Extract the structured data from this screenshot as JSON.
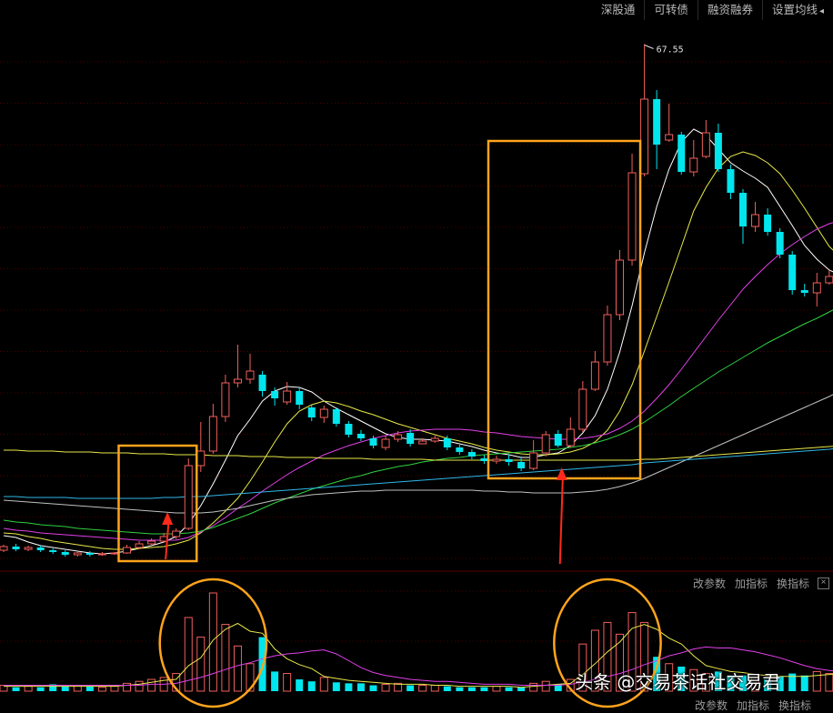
{
  "toolbar": {
    "tabs": [
      "深股通",
      "可转债",
      "融资融券",
      "设置均线"
    ],
    "dropdown_glyph": "◂"
  },
  "indicator_bar_top": {
    "buttons": [
      "改参数",
      "加指标",
      "换指标"
    ],
    "close": "×"
  },
  "indicator_bar_bottom": {
    "buttons": [
      "改参数",
      "加指标",
      "换指标"
    ]
  },
  "watermark": "头条 @交易茶话社交易君",
  "colors": {
    "up": "#f0605c",
    "down": "#00e5ee",
    "grid": "#4a0000",
    "highlight_box": "#ffa41c",
    "arrow": "#ff2a1a",
    "ma_white": "#ffffff",
    "ma_yellow": "#e8e84a",
    "ma_magenta": "#e040e8",
    "ma_green": "#30d040",
    "ma_gray": "#c0c0c0",
    "ma_cyan": "#30b8e8"
  },
  "chart_data": [
    {
      "type": "candlestick",
      "title": "",
      "price_range": [
        10,
        70
      ],
      "max_label": "67.55",
      "candles": [
        [
          11.9,
          12.3,
          12.5,
          11.7
        ],
        [
          12.3,
          12.0,
          12.6,
          11.8
        ],
        [
          12.0,
          12.2,
          12.4,
          11.8
        ],
        [
          12.2,
          11.9,
          12.4,
          11.7
        ],
        [
          11.9,
          11.7,
          12.1,
          11.5
        ],
        [
          11.7,
          11.4,
          11.9,
          11.2
        ],
        [
          11.4,
          11.6,
          11.8,
          11.2
        ],
        [
          11.6,
          11.4,
          11.8,
          11.2
        ],
        [
          11.4,
          11.5,
          11.7,
          11.3
        ],
        [
          11.5,
          11.6,
          11.7,
          11.4
        ],
        [
          11.6,
          12.2,
          12.5,
          11.5
        ],
        [
          12.2,
          12.6,
          12.9,
          12.0
        ],
        [
          12.6,
          12.9,
          13.2,
          12.4
        ],
        [
          12.9,
          13.4,
          13.8,
          12.7
        ],
        [
          13.4,
          14.0,
          14.3,
          13.1
        ],
        [
          14.3,
          21.2,
          22.0,
          14.1
        ],
        [
          21.2,
          22.8,
          26.0,
          20.5
        ],
        [
          22.8,
          26.6,
          28.0,
          22.5
        ],
        [
          26.6,
          30.3,
          31.2,
          26.0
        ],
        [
          30.3,
          30.7,
          34.5,
          29.8
        ],
        [
          30.7,
          31.6,
          33.5,
          30.2
        ],
        [
          31.2,
          29.4,
          31.6,
          28.8
        ],
        [
          29.4,
          28.6,
          29.8,
          27.8
        ],
        [
          28.2,
          29.4,
          30.4,
          27.9
        ],
        [
          29.4,
          27.9,
          29.8,
          27.4
        ],
        [
          27.6,
          26.5,
          27.9,
          26.1
        ],
        [
          26.5,
          27.4,
          27.8,
          25.9
        ],
        [
          27.4,
          25.8,
          27.6,
          25.5
        ],
        [
          25.8,
          24.6,
          26.1,
          24.3
        ],
        [
          24.7,
          24.2,
          25.1,
          23.9
        ],
        [
          24.2,
          23.4,
          24.5,
          23.1
        ],
        [
          23.2,
          24.1,
          24.5,
          22.9
        ],
        [
          24.1,
          24.6,
          25.0,
          23.8
        ],
        [
          24.8,
          23.6,
          25.2,
          23.3
        ],
        [
          23.6,
          23.9,
          24.2,
          23.6
        ],
        [
          23.9,
          24.2,
          24.5,
          23.7
        ],
        [
          24.2,
          23.2,
          24.5,
          22.9
        ],
        [
          23.2,
          22.7,
          23.5,
          22.4
        ],
        [
          22.7,
          22.2,
          23.0,
          21.9
        ],
        [
          22.0,
          21.7,
          22.4,
          21.4
        ],
        [
          21.7,
          21.9,
          22.3,
          21.4
        ],
        [
          21.9,
          21.6,
          22.4,
          21.2
        ],
        [
          21.6,
          20.9,
          22.2,
          20.6
        ],
        [
          20.9,
          22.6,
          24.0,
          20.7
        ],
        [
          22.6,
          24.6,
          25.0,
          22.2
        ],
        [
          24.7,
          23.4,
          25.1,
          23.2
        ],
        [
          23.4,
          25.2,
          26.5,
          23.2
        ],
        [
          25.2,
          29.6,
          30.5,
          24.9
        ],
        [
          29.6,
          32.6,
          33.8,
          29.4
        ],
        [
          32.6,
          37.8,
          38.8,
          32.2
        ],
        [
          37.8,
          43.8,
          44.9,
          37.2
        ],
        [
          43.8,
          53.4,
          55.5,
          43.2
        ],
        [
          53.3,
          61.5,
          67.55,
          53.0
        ],
        [
          61.5,
          56.5,
          62.5,
          53.8
        ],
        [
          57.0,
          57.6,
          61.0,
          56.8
        ],
        [
          57.6,
          53.5,
          57.9,
          53.2
        ],
        [
          53.5,
          55.0,
          57.0,
          53.0
        ],
        [
          55.2,
          57.8,
          59.2,
          55.0
        ],
        [
          57.8,
          53.8,
          58.8,
          53.5
        ],
        [
          53.8,
          51.2,
          54.3,
          50.5
        ],
        [
          51.2,
          47.5,
          51.6,
          45.6
        ],
        [
          47.5,
          48.8,
          50.2,
          46.9
        ],
        [
          48.8,
          46.9,
          49.5,
          46.5
        ],
        [
          46.9,
          44.4,
          47.3,
          44.0
        ],
        [
          44.4,
          40.5,
          44.8,
          40.0
        ],
        [
          40.5,
          40.2,
          41.2,
          39.8
        ],
        [
          40.2,
          41.3,
          42.4,
          38.7
        ],
        [
          41.3,
          42.0,
          42.7,
          41.1
        ],
        [
          42.0,
          41.5,
          42.3,
          41.0
        ]
      ],
      "ma_series": [
        {
          "color_key": "ma_white",
          "values": [
            13.5,
            13.3,
            12.8,
            12.4,
            12.2,
            12.0,
            11.8,
            11.6,
            11.5,
            11.6,
            11.8,
            12.1,
            12.4,
            12.8,
            13.4,
            14.8,
            16.8,
            19.2,
            21.8,
            24.5,
            26.3,
            28.3,
            29.4,
            29.9,
            29.8,
            29.3,
            28.3,
            27.5,
            26.8,
            26.1,
            25.4,
            24.7,
            24.3,
            24.1,
            24.1,
            24.0,
            23.9,
            23.6,
            23.3,
            22.9,
            22.6,
            22.4,
            22.1,
            22.1,
            22.4,
            22.6,
            23.4,
            24.8,
            26.7,
            29.6,
            33.7,
            38.8,
            44.6,
            49.7,
            53.8,
            56.8,
            58.2,
            57.5,
            56.0,
            54.5,
            53.6,
            52.8,
            51.8,
            49.7,
            47.6,
            45.4,
            43.9,
            42.7,
            42.1
          ]
        },
        {
          "color_key": "ma_yellow",
          "values": [
            13.8,
            13.7,
            13.4,
            13.2,
            12.9,
            12.7,
            12.5,
            12.3,
            12.1,
            12.0,
            12.0,
            12.1,
            12.2,
            12.3,
            12.6,
            13.0,
            13.8,
            14.9,
            16.2,
            17.6,
            19.5,
            21.6,
            23.8,
            25.8,
            27.2,
            27.9,
            28.3,
            28.1,
            27.7,
            27.2,
            26.8,
            26.3,
            25.8,
            25.4,
            25.0,
            24.6,
            24.2,
            23.9,
            23.6,
            23.2,
            22.9,
            22.7,
            22.5,
            22.4,
            22.4,
            22.5,
            22.7,
            23.1,
            23.8,
            25.1,
            27.2,
            30.1,
            33.8,
            37.6,
            41.4,
            45.3,
            49.2,
            51.8,
            53.9,
            55.2,
            55.7,
            55.3,
            54.5,
            53.3,
            51.5,
            49.5,
            47.4,
            45.3,
            44.0
          ]
        },
        {
          "color_key": "ma_magenta",
          "values": [
            14.3,
            14.1,
            14.0,
            13.8,
            13.7,
            13.6,
            13.5,
            13.4,
            13.3,
            13.2,
            13.1,
            13.0,
            13.0,
            13.0,
            13.0,
            13.3,
            13.9,
            14.6,
            15.5,
            16.5,
            17.4,
            18.4,
            19.3,
            20.2,
            21.0,
            21.7,
            22.4,
            22.9,
            23.4,
            23.8,
            24.2,
            24.5,
            24.8,
            25.0,
            25.1,
            25.2,
            25.2,
            25.2,
            25.1,
            24.9,
            24.8,
            24.6,
            24.4,
            24.3,
            24.2,
            24.1,
            24.1,
            24.2,
            24.4,
            24.7,
            25.3,
            26.1,
            27.2,
            28.6,
            30.1,
            31.8,
            33.6,
            35.4,
            37.2,
            38.9,
            40.6,
            42.0,
            43.3,
            44.5,
            45.5,
            46.4,
            47.2,
            47.8,
            48.2
          ]
        },
        {
          "color_key": "ma_green",
          "values": [
            15.2,
            15.0,
            14.9,
            14.7,
            14.6,
            14.5,
            14.3,
            14.2,
            14.1,
            14.0,
            13.9,
            13.8,
            13.7,
            13.7,
            13.7,
            13.8,
            14.0,
            14.4,
            14.9,
            15.4,
            15.9,
            16.5,
            17.1,
            17.6,
            18.1,
            18.6,
            19.0,
            19.4,
            19.8,
            20.1,
            20.5,
            20.8,
            21.1,
            21.3,
            21.6,
            21.8,
            22.0,
            22.1,
            22.3,
            22.4,
            22.5,
            22.6,
            22.7,
            22.8,
            22.9,
            23.0,
            23.2,
            23.4,
            23.7,
            24.1,
            24.6,
            25.2,
            26.0,
            26.9,
            27.8,
            28.8,
            29.7,
            30.6,
            31.5,
            32.3,
            33.1,
            33.9,
            34.7,
            35.4,
            36.1,
            36.8,
            37.4,
            38.1,
            38.8
          ]
        },
        {
          "color_key": "ma_gray",
          "values": [
            17.4,
            17.3,
            17.2,
            17.1,
            17.0,
            16.9,
            16.8,
            16.7,
            16.6,
            16.5,
            16.4,
            16.3,
            16.2,
            16.1,
            16.0,
            16.0,
            16.0,
            16.1,
            16.3,
            16.5,
            16.8,
            17.1,
            17.4,
            17.6,
            17.8,
            18.0,
            18.1,
            18.2,
            18.3,
            18.4,
            18.4,
            18.5,
            18.5,
            18.5,
            18.5,
            18.5,
            18.5,
            18.5,
            18.5,
            18.4,
            18.4,
            18.3,
            18.3,
            18.2,
            18.2,
            18.2,
            18.2,
            18.3,
            18.4,
            18.6,
            18.9,
            19.3,
            19.8,
            20.4,
            21.0,
            21.6,
            22.2,
            22.8,
            23.4,
            24.0,
            24.6,
            25.2,
            25.8,
            26.4,
            27.0,
            27.6,
            28.2,
            28.8,
            29.5
          ]
        },
        {
          "color_key": "ma_yellow",
          "values": [
            22.9,
            22.9,
            22.8,
            22.8,
            22.8,
            22.7,
            22.7,
            22.7,
            22.6,
            22.6,
            22.6,
            22.5,
            22.5,
            22.5,
            22.4,
            22.4,
            22.4,
            22.3,
            22.3,
            22.3,
            22.2,
            22.2,
            22.2,
            22.1,
            22.1,
            22.1,
            22.0,
            22.0,
            22.0,
            22.0,
            21.9,
            21.9,
            21.9,
            21.9,
            21.9,
            21.8,
            21.8,
            21.8,
            21.8,
            21.8,
            21.8,
            21.8,
            21.8,
            21.8,
            21.8,
            21.8,
            21.8,
            21.8,
            21.8,
            21.8,
            21.8,
            21.8,
            21.9,
            21.9,
            22.0,
            22.1,
            22.2,
            22.3,
            22.4,
            22.5,
            22.6,
            22.7,
            22.8,
            22.9,
            23.0,
            23.1,
            23.2,
            23.3,
            23.4
          ]
        },
        {
          "color_key": "ma_cyan",
          "values": [
            17.8,
            17.8,
            17.7,
            17.7,
            17.7,
            17.7,
            17.6,
            17.6,
            17.6,
            17.6,
            17.6,
            17.6,
            17.6,
            17.7,
            17.7,
            17.8,
            17.8,
            17.9,
            18.0,
            18.1,
            18.2,
            18.3,
            18.4,
            18.5,
            18.6,
            18.7,
            18.8,
            18.9,
            19.0,
            19.1,
            19.2,
            19.3,
            19.4,
            19.5,
            19.6,
            19.7,
            19.8,
            19.9,
            20.0,
            20.1,
            20.2,
            20.3,
            20.4,
            20.5,
            20.6,
            20.7,
            20.8,
            20.9,
            21.0,
            21.1,
            21.2,
            21.3,
            21.5,
            21.6,
            21.7,
            21.8,
            21.9,
            22.0,
            22.1,
            22.2,
            22.3,
            22.4,
            22.5,
            22.6,
            22.7,
            22.8,
            22.9,
            23.0,
            23.2
          ]
        }
      ],
      "highlight_boxes": [
        [
          10,
          15
        ],
        [
          40,
          51
        ]
      ],
      "arrows": [
        13,
        45
      ]
    },
    {
      "type": "bar",
      "title": "",
      "volume_range": [
        0,
        100
      ],
      "volumes": [
        6,
        4,
        5,
        4,
        7,
        5,
        6,
        5,
        4,
        5,
        8,
        10,
        12,
        14,
        18,
        75,
        55,
        100,
        68,
        46,
        28,
        55,
        20,
        18,
        12,
        10,
        14,
        9,
        8,
        8,
        6,
        7,
        8,
        6,
        6,
        6,
        5,
        4,
        4,
        4,
        5,
        4,
        4,
        8,
        10,
        7,
        12,
        48,
        62,
        70,
        58,
        80,
        70,
        35,
        28,
        25,
        22,
        18,
        20,
        16,
        16,
        14,
        12,
        15,
        18,
        16,
        20,
        18,
        20
      ],
      "vol_ma": [
        {
          "color_key": "ma_yellow",
          "values": [
            5,
            5,
            5,
            5,
            5,
            5,
            5,
            5,
            5,
            5,
            6,
            7,
            9,
            11,
            12,
            26,
            34,
            52,
            63,
            69,
            61,
            59,
            43,
            33,
            27,
            23,
            15,
            13,
            11,
            10,
            9,
            8,
            7,
            7,
            7,
            6,
            6,
            5,
            5,
            5,
            5,
            5,
            4,
            5,
            6,
            7,
            8,
            17,
            28,
            40,
            50,
            64,
            68,
            63,
            54,
            48,
            36,
            26,
            23,
            20,
            19,
            17,
            16,
            15,
            15,
            15,
            16,
            17,
            18
          ]
        },
        {
          "color_key": "ma_magenta",
          "values": [
            6,
            6,
            6,
            6,
            6,
            6,
            6,
            6,
            6,
            6,
            6,
            6,
            7,
            7,
            8,
            11,
            14,
            18,
            22,
            26,
            29,
            33,
            36,
            38,
            39,
            41,
            42,
            38,
            31,
            24,
            19,
            16,
            14,
            12,
            11,
            10,
            10,
            9,
            8,
            7,
            7,
            7,
            6,
            6,
            6,
            6,
            7,
            9,
            12,
            15,
            18,
            22,
            27,
            31,
            36,
            39,
            43,
            45,
            44,
            44,
            42,
            40,
            37,
            34,
            30,
            26,
            23,
            21,
            20
          ]
        }
      ],
      "highlight_ellipses": [
        [
          14,
          20
        ],
        [
          46,
          52
        ]
      ]
    }
  ]
}
